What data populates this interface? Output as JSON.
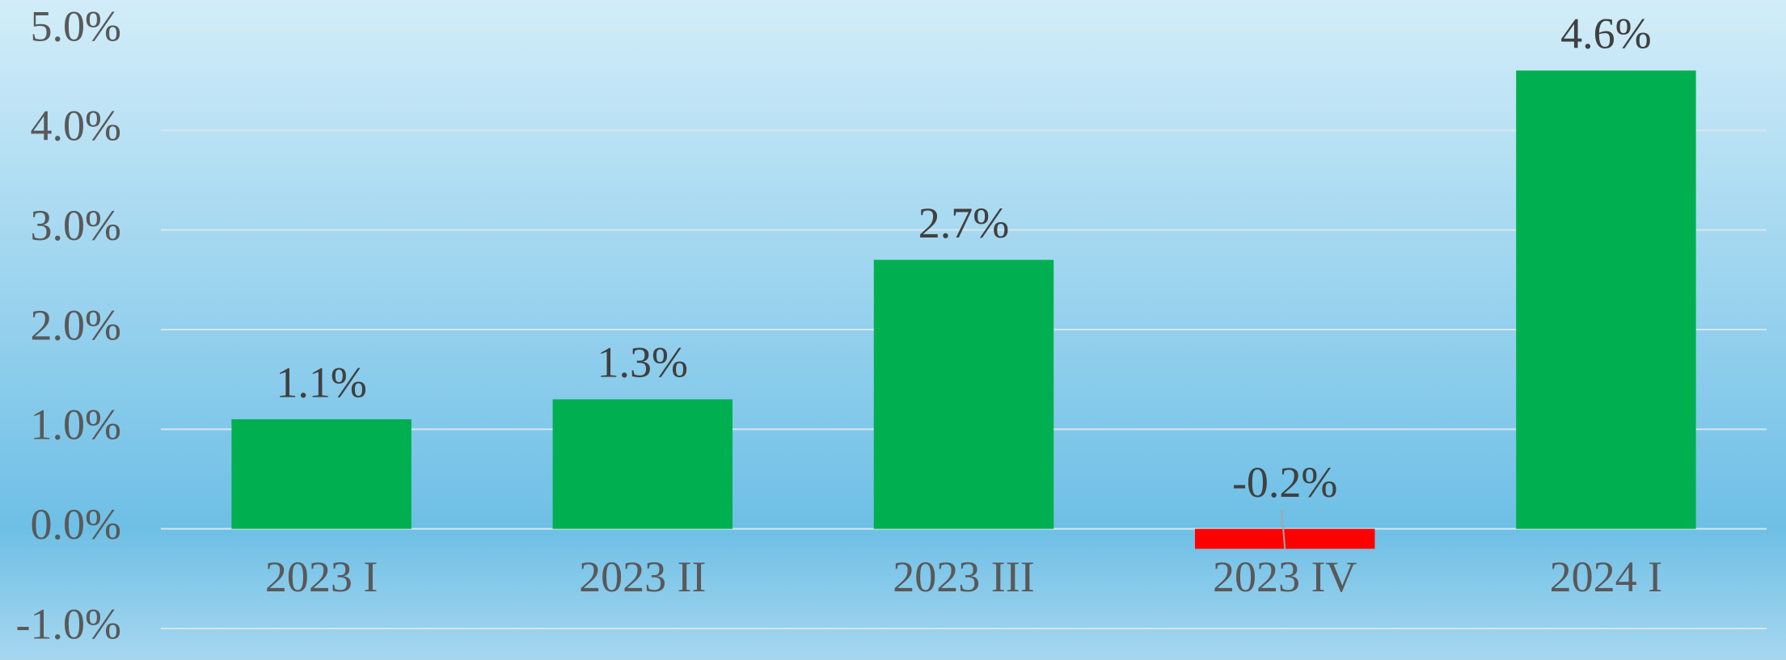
{
  "chart_data": {
    "type": "bar",
    "categories": [
      "2023 I",
      "2023 II",
      "2023 III",
      "2023 IV",
      "2024 I"
    ],
    "values": [
      1.1,
      1.3,
      2.7,
      -0.2,
      4.6
    ],
    "value_labels": [
      "1.1%",
      "1.3%",
      "2.7%",
      "-0.2%",
      "4.6%"
    ],
    "colors": [
      "#00b050",
      "#00b050",
      "#00b050",
      "#ff0000",
      "#00b050"
    ],
    "ylim": [
      -1,
      5
    ],
    "yticks": [
      {
        "value": -1,
        "label": "-1.0%"
      },
      {
        "value": 0,
        "label": "0.0%"
      },
      {
        "value": 1,
        "label": "1.0%"
      },
      {
        "value": 2,
        "label": "2.0%"
      },
      {
        "value": 3,
        "label": "3.0%"
      },
      {
        "value": 4,
        "label": "4.0%"
      },
      {
        "value": 5,
        "label": "5.0%"
      }
    ],
    "grid": true
  }
}
